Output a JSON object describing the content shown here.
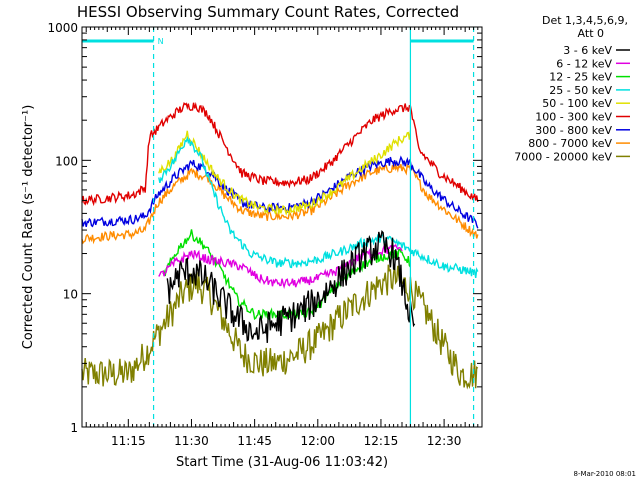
{
  "chart_data": {
    "type": "line",
    "title": "HESSI Observing Summary Count Rates, Corrected",
    "xlabel": "Start Time (31-Aug-06 11:03:42)",
    "ylabel": "Corrected Count Rate (s⁻¹ detector⁻¹)",
    "x_unit": "minutes of day",
    "xlim": [
      "11:04",
      "12:39"
    ],
    "ylim": [
      1,
      1000
    ],
    "y_scale": "log",
    "x_ticks": [
      "11:15",
      "11:30",
      "11:45",
      "12:00",
      "12:15",
      "12:30"
    ],
    "y_ticks": [
      "1",
      "10",
      "100",
      "1000"
    ],
    "legend_header": [
      "Det 1,3,4,5,6,9,",
      "Att 0"
    ],
    "legend_position": "right",
    "footer_date": "8-Mar-2010 08:01",
    "marker_label": "N",
    "series": [
      {
        "name": "3 - 6 keV",
        "color": "#000000",
        "points": [
          [
            "11:04",
            null
          ],
          [
            "11:20",
            null
          ],
          [
            "11:24",
            10
          ],
          [
            "11:27",
            14
          ],
          [
            "11:30",
            15
          ],
          [
            "11:33",
            13
          ],
          [
            "11:36",
            10
          ],
          [
            "11:40",
            7
          ],
          [
            "11:45",
            5
          ],
          [
            "11:50",
            6
          ],
          [
            "11:55",
            7
          ],
          [
            "12:00",
            9
          ],
          [
            "12:05",
            13
          ],
          [
            "12:10",
            19
          ],
          [
            "12:15",
            23
          ],
          [
            "12:18",
            20
          ],
          [
            "12:20",
            12
          ],
          [
            "12:23",
            5
          ],
          [
            "12:26",
            null
          ],
          [
            "12:39",
            null
          ]
        ]
      },
      {
        "name": "6 - 12 keV",
        "color": "#e000e0",
        "points": [
          [
            "11:04",
            null
          ],
          [
            "11:20",
            null
          ],
          [
            "11:22",
            13
          ],
          [
            "11:26",
            17
          ],
          [
            "11:30",
            20
          ],
          [
            "11:34",
            18
          ],
          [
            "11:38",
            17
          ],
          [
            "11:42",
            16
          ],
          [
            "11:46",
            13
          ],
          [
            "11:50",
            12
          ],
          [
            "11:55",
            12
          ],
          [
            "12:00",
            13
          ],
          [
            "12:05",
            15
          ],
          [
            "12:10",
            19
          ],
          [
            "12:15",
            21
          ],
          [
            "12:20",
            22
          ],
          [
            "12:24",
            null
          ],
          [
            "12:39",
            null
          ]
        ]
      },
      {
        "name": "12 - 25 keV",
        "color": "#00e000",
        "points": [
          [
            "11:04",
            null
          ],
          [
            "11:20",
            null
          ],
          [
            "11:23",
            13
          ],
          [
            "11:27",
            22
          ],
          [
            "11:30",
            28
          ],
          [
            "11:33",
            23
          ],
          [
            "11:37",
            15
          ],
          [
            "11:41",
            9
          ],
          [
            "11:45",
            7
          ],
          [
            "11:52",
            7
          ],
          [
            "11:57",
            7
          ],
          [
            "12:00",
            8
          ],
          [
            "12:05",
            12
          ],
          [
            "12:10",
            16
          ],
          [
            "12:15",
            19
          ],
          [
            "12:20",
            20
          ],
          [
            "12:22",
            17
          ],
          [
            "12:25",
            null
          ],
          [
            "12:39",
            null
          ]
        ]
      },
      {
        "name": "25 - 50 keV",
        "color": "#00e0e0",
        "points": [
          [
            "11:04",
            null
          ],
          [
            "11:20",
            null
          ],
          [
            "11:22",
            70
          ],
          [
            "11:26",
            100
          ],
          [
            "11:29",
            150
          ],
          [
            "11:32",
            110
          ],
          [
            "11:35",
            60
          ],
          [
            "11:39",
            30
          ],
          [
            "11:44",
            20
          ],
          [
            "11:50",
            17
          ],
          [
            "11:56",
            17
          ],
          [
            "12:00",
            18
          ],
          [
            "12:06",
            21
          ],
          [
            "12:12",
            25
          ],
          [
            "12:16",
            26
          ],
          [
            "12:20",
            23
          ],
          [
            "12:25",
            19
          ],
          [
            "12:30",
            16
          ],
          [
            "12:35",
            15
          ],
          [
            "12:38",
            14
          ]
        ]
      },
      {
        "name": "50 - 100 keV",
        "color": "#e0e000",
        "points": [
          [
            "11:04",
            null
          ],
          [
            "11:20",
            null
          ],
          [
            "11:22",
            80
          ],
          [
            "11:26",
            105
          ],
          [
            "11:29",
            160
          ],
          [
            "11:32",
            115
          ],
          [
            "11:36",
            75
          ],
          [
            "11:41",
            52
          ],
          [
            "11:46",
            44
          ],
          [
            "11:52",
            42
          ],
          [
            "11:58",
            46
          ],
          [
            "12:04",
            60
          ],
          [
            "12:10",
            85
          ],
          [
            "12:15",
            110
          ],
          [
            "12:19",
            140
          ],
          [
            "12:22",
            155
          ],
          [
            "12:24",
            null
          ],
          [
            "12:39",
            null
          ]
        ]
      },
      {
        "name": "100 - 300 keV",
        "color": "#e00000",
        "points": [
          [
            "11:04",
            50
          ],
          [
            "11:10",
            52
          ],
          [
            "11:16",
            55
          ],
          [
            "11:19",
            62
          ],
          [
            "11:20",
            150
          ],
          [
            "11:24",
            200
          ],
          [
            "11:28",
            250
          ],
          [
            "11:31",
            260
          ],
          [
            "11:34",
            220
          ],
          [
            "11:38",
            130
          ],
          [
            "11:42",
            80
          ],
          [
            "11:47",
            70
          ],
          [
            "11:53",
            68
          ],
          [
            "11:58",
            72
          ],
          [
            "12:03",
            95
          ],
          [
            "12:08",
            140
          ],
          [
            "12:13",
            200
          ],
          [
            "12:18",
            240
          ],
          [
            "12:22",
            250
          ],
          [
            "12:24",
            120
          ],
          [
            "12:29",
            80
          ],
          [
            "12:33",
            65
          ],
          [
            "12:38",
            50
          ]
        ]
      },
      {
        "name": "300 - 800 keV",
        "color": "#0000e0",
        "points": [
          [
            "11:04",
            34
          ],
          [
            "11:10",
            35
          ],
          [
            "11:16",
            36
          ],
          [
            "11:19",
            38
          ],
          [
            "11:22",
            55
          ],
          [
            "11:26",
            75
          ],
          [
            "11:30",
            95
          ],
          [
            "11:34",
            85
          ],
          [
            "11:38",
            62
          ],
          [
            "11:42",
            48
          ],
          [
            "11:47",
            44
          ],
          [
            "11:53",
            44
          ],
          [
            "11:58",
            48
          ],
          [
            "12:03",
            60
          ],
          [
            "12:08",
            78
          ],
          [
            "12:13",
            92
          ],
          [
            "12:18",
            100
          ],
          [
            "12:22",
            95
          ],
          [
            "12:26",
            65
          ],
          [
            "12:32",
            45
          ],
          [
            "12:38",
            33
          ]
        ]
      },
      {
        "name": "800 - 7000 keV",
        "color": "#ff8c00",
        "points": [
          [
            "11:04",
            26
          ],
          [
            "11:10",
            27
          ],
          [
            "11:16",
            28
          ],
          [
            "11:19",
            30
          ],
          [
            "11:22",
            48
          ],
          [
            "11:26",
            65
          ],
          [
            "11:30",
            82
          ],
          [
            "11:34",
            74
          ],
          [
            "11:38",
            54
          ],
          [
            "11:42",
            42
          ],
          [
            "11:47",
            38
          ],
          [
            "11:53",
            38
          ],
          [
            "11:58",
            41
          ],
          [
            "12:03",
            52
          ],
          [
            "12:08",
            68
          ],
          [
            "12:13",
            82
          ],
          [
            "12:18",
            88
          ],
          [
            "12:22",
            86
          ],
          [
            "12:26",
            55
          ],
          [
            "12:32",
            38
          ],
          [
            "12:38",
            27
          ]
        ]
      },
      {
        "name": "7000 - 20000 keV",
        "color": "#808000",
        "points": [
          [
            "11:04",
            2.5
          ],
          [
            "11:10",
            2.5
          ],
          [
            "11:15",
            2.5
          ],
          [
            "11:19",
            3.5
          ],
          [
            "11:22",
            5
          ],
          [
            "11:25",
            7
          ],
          [
            "11:28",
            10
          ],
          [
            "11:31",
            12
          ],
          [
            "11:34",
            10
          ],
          [
            "11:38",
            6
          ],
          [
            "11:42",
            3.5
          ],
          [
            "11:46",
            3
          ],
          [
            "11:50",
            3
          ],
          [
            "11:55",
            3.5
          ],
          [
            "12:00",
            4.5
          ],
          [
            "12:05",
            6.5
          ],
          [
            "12:10",
            9
          ],
          [
            "12:15",
            12
          ],
          [
            "12:18",
            13
          ],
          [
            "12:22",
            11
          ],
          [
            "12:26",
            7
          ],
          [
            "12:30",
            4
          ],
          [
            "12:34",
            2.5
          ],
          [
            "12:38",
            2.5
          ]
        ]
      }
    ],
    "vertical_markers": [
      {
        "x": "11:21",
        "style": "dashed",
        "color": "#00e0e0"
      },
      {
        "x": "12:22",
        "style": "solid",
        "color": "#00e0e0"
      },
      {
        "x": "12:37",
        "style": "dashed",
        "color": "#00e0e0"
      }
    ],
    "top_bars": [
      {
        "x": [
          "11:04",
          "11:21"
        ],
        "color": "#00e0e0"
      },
      {
        "x": [
          "12:22",
          "12:37"
        ],
        "color": "#00e0e0"
      }
    ]
  }
}
